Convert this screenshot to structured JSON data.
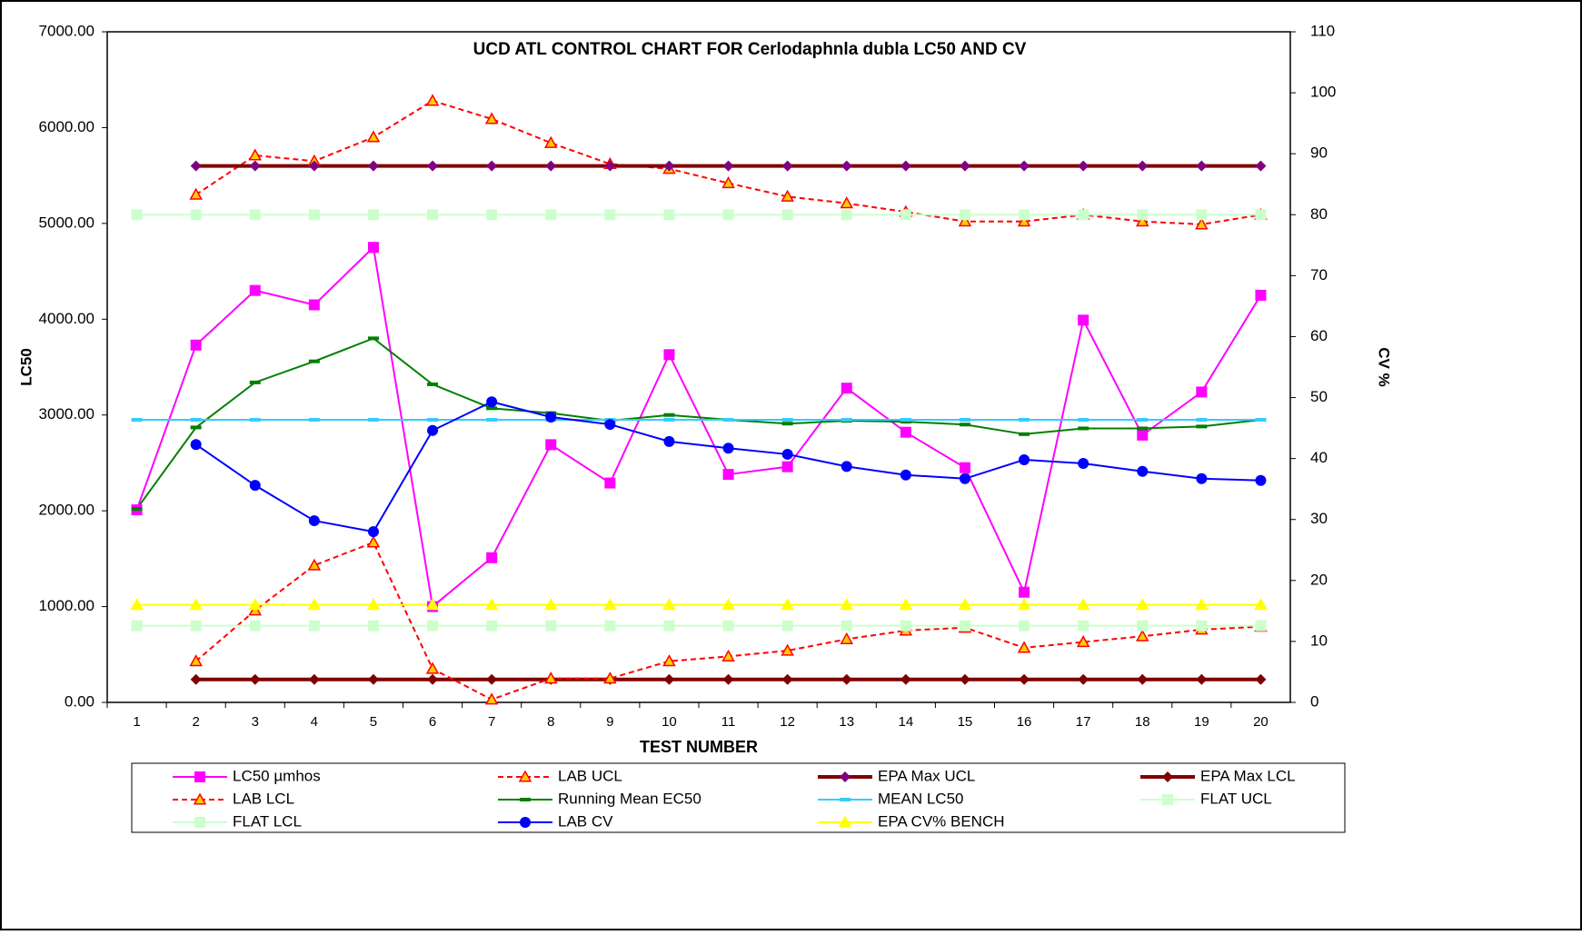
{
  "chart_data": {
    "type": "line",
    "title": "UCD ATL CONTROL CHART FOR Cerlodaphnla dubla LC50 AND CV",
    "x_label": "TEST NUMBER",
    "y_label": "LC50",
    "y2_label": "CV %",
    "categories": [
      "1",
      "2",
      "3",
      "4",
      "5",
      "6",
      "7",
      "8",
      "9",
      "10",
      "11",
      "12",
      "13",
      "14",
      "15",
      "16",
      "17",
      "18",
      "19",
      "20"
    ],
    "ylim": [
      0,
      7000
    ],
    "yticks": [
      {
        "value": 0,
        "label": "0.00"
      },
      {
        "value": 1000,
        "label": "1000.00"
      },
      {
        "value": 2000,
        "label": "2000.00"
      },
      {
        "value": 3000,
        "label": "3000.00"
      },
      {
        "value": 4000,
        "label": "4000.00"
      },
      {
        "value": 5000,
        "label": "5000.00"
      },
      {
        "value": 6000,
        "label": "6000.00"
      },
      {
        "value": 7000,
        "label": "7000.00"
      }
    ],
    "y2lim": [
      0,
      110
    ],
    "y2ticks": [
      0,
      10,
      20,
      30,
      40,
      50,
      60,
      70,
      80,
      90,
      100,
      110
    ],
    "grid": false,
    "legend": "bottom",
    "series": [
      {
        "name": "LC50 µmhos",
        "color": "#ff00ff",
        "marker": "square",
        "marker_color": "#ff00ff",
        "line_width": 2,
        "dash": false,
        "values": [
          2010,
          3730,
          4300,
          4150,
          4750,
          1000,
          1510,
          2690,
          2290,
          3630,
          2380,
          2460,
          3280,
          2820,
          2450,
          1150,
          3990,
          2790,
          3240,
          4250
        ]
      },
      {
        "name": "LAB UCL",
        "color": "#ff0000",
        "marker": "triangle",
        "marker_color": "#ffcc00",
        "line_width": 2,
        "dash": true,
        "values": [
          null,
          5300,
          5710,
          5650,
          5900,
          6280,
          6090,
          5840,
          5620,
          5570,
          5420,
          5280,
          5210,
          5120,
          5020,
          5020,
          5090,
          5020,
          4990,
          5090
        ]
      },
      {
        "name": "EPA Max UCL",
        "color": "#800000",
        "marker": "diamond",
        "marker_color": "#800080",
        "line_width": 4,
        "dash": false,
        "values": [
          null,
          5600,
          5600,
          5600,
          5600,
          5600,
          5600,
          5600,
          5600,
          5600,
          5600,
          5600,
          5600,
          5600,
          5600,
          5600,
          5600,
          5600,
          5600,
          5600
        ]
      },
      {
        "name": "EPA Max LCL",
        "color": "#800000",
        "marker": "diamond",
        "marker_color": "#800000",
        "line_width": 4,
        "dash": false,
        "values": [
          null,
          240,
          240,
          240,
          240,
          240,
          240,
          240,
          240,
          240,
          240,
          240,
          240,
          240,
          240,
          240,
          240,
          240,
          240,
          240
        ]
      },
      {
        "name": "LAB LCL",
        "color": "#ff0000",
        "marker": "triangle",
        "marker_color": "#ffcc00",
        "line_width": 2,
        "dash": true,
        "values": [
          null,
          430,
          960,
          1430,
          1670,
          350,
          30,
          250,
          250,
          430,
          480,
          540,
          660,
          750,
          780,
          570,
          630,
          690,
          760,
          790
        ]
      },
      {
        "name": "Running Mean EC50",
        "color": "#008000",
        "marker": "dash",
        "marker_color": "#008000",
        "line_width": 2,
        "dash": false,
        "values": [
          2020,
          2870,
          3340,
          3560,
          3800,
          3320,
          3070,
          3020,
          2940,
          3000,
          2950,
          2910,
          2940,
          2930,
          2900,
          2800,
          2860,
          2860,
          2880,
          2950
        ]
      },
      {
        "name": "MEAN LC50",
        "color": "#33ccff",
        "marker": "dash",
        "marker_color": "#33ccff",
        "line_width": 2,
        "dash": false,
        "values": [
          2950,
          2950,
          2950,
          2950,
          2950,
          2950,
          2950,
          2950,
          2950,
          2950,
          2950,
          2950,
          2950,
          2950,
          2950,
          2950,
          2950,
          2950,
          2950,
          2950
        ]
      },
      {
        "name": "FLAT UCL",
        "color": "#ccffcc",
        "marker": "square",
        "marker_color": "#ccffcc",
        "line_width": 2,
        "dash": false,
        "values": [
          5090,
          5090,
          5090,
          5090,
          5090,
          5090,
          5090,
          5090,
          5090,
          5090,
          5090,
          5090,
          5090,
          5090,
          5090,
          5090,
          5090,
          5090,
          5090,
          5090
        ]
      },
      {
        "name": "FLAT LCL",
        "color": "#ccffcc",
        "marker": "square",
        "marker_color": "#ccffcc",
        "line_width": 2,
        "dash": false,
        "values": [
          800,
          800,
          800,
          800,
          800,
          800,
          800,
          800,
          800,
          800,
          800,
          800,
          800,
          800,
          800,
          800,
          800,
          800,
          800,
          800
        ]
      },
      {
        "name": "LAB CV",
        "color": "#0000ff",
        "marker": "circle",
        "marker_color": "#0000ff",
        "line_width": 2,
        "dash": false,
        "axis": "y2",
        "values": [
          null,
          42.3,
          35.6,
          29.8,
          28,
          44.6,
          49.3,
          46.8,
          45.6,
          42.8,
          41.7,
          40.7,
          38.7,
          37.3,
          36.7,
          39.8,
          39.2,
          37.9,
          36.7,
          36.4
        ]
      },
      {
        "name": "EPA CV% BENCH",
        "color": "#ffff00",
        "marker": "triangle",
        "marker_color": "#ffff00",
        "line_width": 2,
        "dash": false,
        "axis": "y2",
        "values": [
          16,
          16,
          16,
          16,
          16,
          16,
          16,
          16,
          16,
          16,
          16,
          16,
          16,
          16,
          16,
          16,
          16,
          16,
          16,
          16
        ]
      }
    ]
  }
}
